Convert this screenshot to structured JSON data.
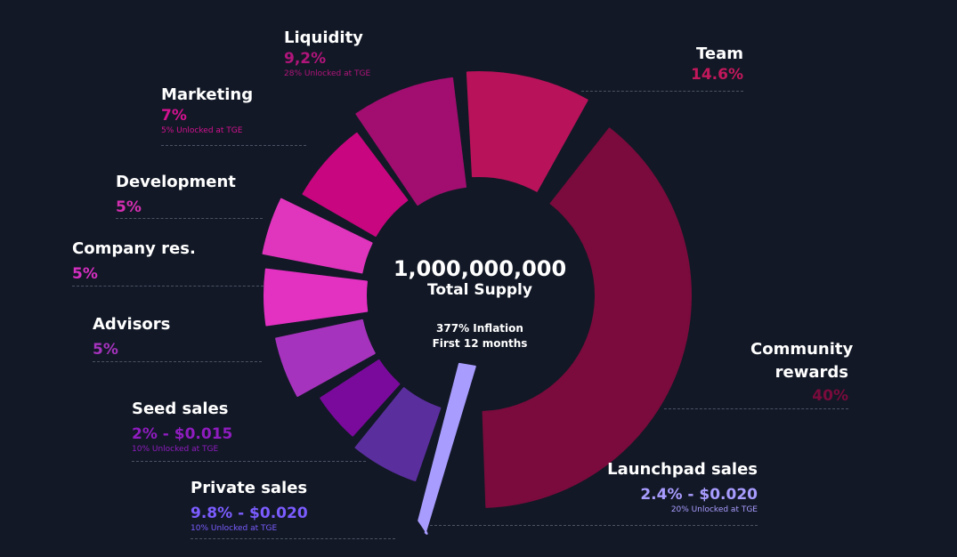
{
  "center": {
    "total": "1,000,000,000",
    "subtitle": "Total Supply",
    "inflation_line1": "377% Inflation",
    "inflation_line2": "First 12 months"
  },
  "chart_data": {
    "type": "pie",
    "title": "",
    "slices": [
      {
        "name": "Community rewards",
        "value": 40,
        "label": "40%",
        "color": "#7a0b3c"
      },
      {
        "name": "Launchpad sales",
        "value": 2.4,
        "label": "2.4% - $0.020",
        "note": "20% Unlocked at TGE",
        "color": "#a99cff"
      },
      {
        "name": "Private sales",
        "value": 9.8,
        "label": "9.8% - $0.020",
        "note": "10% Unlocked at TGE",
        "color": "#5b2e9e"
      },
      {
        "name": "Seed sales",
        "value": 2,
        "label": "2% - $0.015",
        "note": "10% Unlocked at TGE",
        "color": "#7a0a9c"
      },
      {
        "name": "Advisors",
        "value": 5,
        "label": "5%",
        "color": "#a633bd"
      },
      {
        "name": "Company res.",
        "value": 5,
        "label": "5%",
        "color": "#e331c2"
      },
      {
        "name": "Development",
        "value": 5,
        "label": "5%",
        "color": "#e035bd"
      },
      {
        "name": "Marketing",
        "value": 7,
        "label": "7%",
        "note": "5% Unlocked at TGE",
        "color": "#c8067f"
      },
      {
        "name": "Liquidity",
        "value": 9.2,
        "label": "9,2%",
        "note": "28% Unlocked at TGE",
        "color": "#a10e6f"
      },
      {
        "name": "Team",
        "value": 14.6,
        "label": "14.6%",
        "color": "#b8125a"
      }
    ],
    "legend_text_colors": {
      "Community rewards": "#7a0b3c",
      "Launchpad sales": "#a99cff",
      "Private sales": "#7b5cff",
      "Seed sales": "#8f1cbf",
      "Advisors": "#a633bd",
      "Company res.": "#d42fc0",
      "Development": "#d42fb0",
      "Marketing": "#d2128f",
      "Liquidity": "#b0157a",
      "Team": "#c2185b"
    }
  }
}
